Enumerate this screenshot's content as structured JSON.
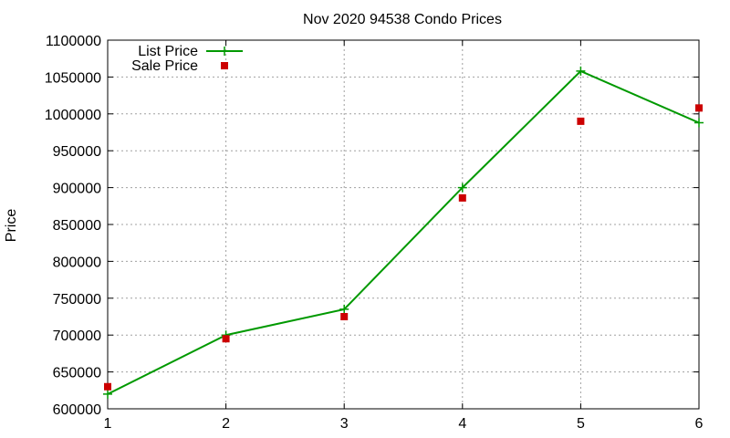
{
  "chart_data": {
    "type": "line",
    "title": "Nov 2020 94538 Condo Prices",
    "xlabel": "",
    "ylabel": "Price",
    "x": [
      1,
      2,
      3,
      4,
      5,
      6
    ],
    "xlim": [
      1,
      6
    ],
    "ylim": [
      600000,
      1100000
    ],
    "x_ticks": [
      "1",
      "2",
      "3",
      "4",
      "5",
      "6"
    ],
    "y_ticks": [
      "600000",
      "650000",
      "700000",
      "750000",
      "800000",
      "850000",
      "900000",
      "950000",
      "1000000",
      "1050000",
      "1100000"
    ],
    "grid": true,
    "legend_position": "top-left",
    "series": [
      {
        "name": "List Price",
        "style": "line-with-plus-markers",
        "color": "#009900",
        "values": [
          620000,
          700000,
          735000,
          900000,
          1058000,
          988000
        ]
      },
      {
        "name": "Sale Price",
        "style": "square-markers",
        "color": "#cc0000",
        "values": [
          630000,
          695000,
          725000,
          886000,
          990000,
          1008000
        ]
      }
    ]
  }
}
